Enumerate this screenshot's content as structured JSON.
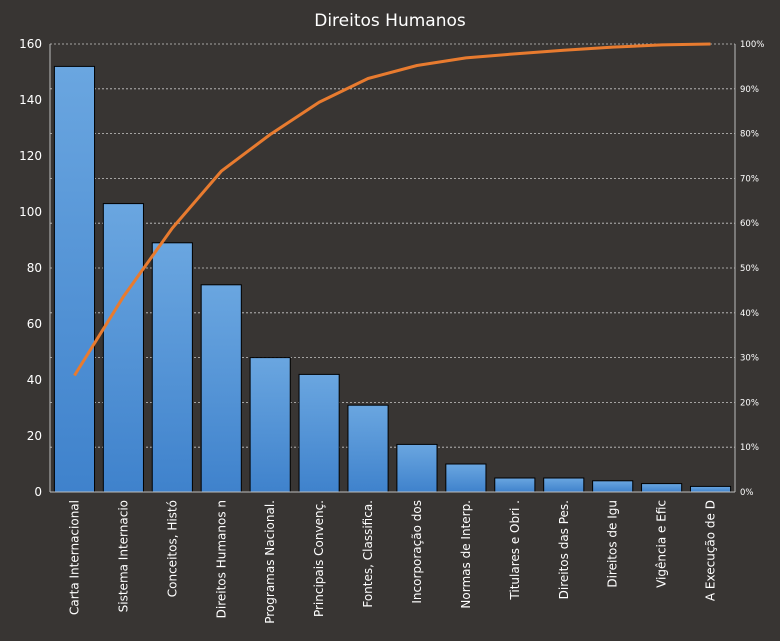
{
  "chart_data": {
    "type": "bar",
    "title": "Direitos Humanos",
    "categories": [
      "Carta Internacional",
      "Sistema Internacio",
      "Conceitos, Histó",
      "Direitos Humanos n",
      "Programas Nacional.",
      "Principais Convenç.",
      "Fontes, Classifica.",
      "Incorporação dos",
      "Normas de Interp.",
      "Titulares e Obri .",
      "Direitos das Pes.",
      "Direitos de Igu",
      "Vigência e Efic",
      "A Execução de D"
    ],
    "series": [
      {
        "type": "bar",
        "values": [
          152,
          103,
          89,
          74,
          48,
          42,
          31,
          17,
          10,
          5,
          5,
          4,
          3,
          2
        ]
      },
      {
        "type": "line",
        "axis": "right",
        "values": [
          26,
          43.6,
          58.9,
          71.6,
          79.8,
          87,
          92.3,
          95.2,
          96.9,
          97.8,
          98.6,
          99.3,
          99.8,
          100
        ]
      }
    ],
    "ylim": [
      0,
      160
    ],
    "yticks": [
      0,
      20,
      40,
      60,
      80,
      100,
      120,
      140,
      160
    ],
    "y2lim": [
      0,
      100
    ],
    "y2ticks": [
      "0%",
      "10%",
      "20%",
      "30%",
      "40%",
      "50%",
      "60%",
      "70%",
      "80%",
      "90%",
      "100%"
    ],
    "grid": true,
    "legend": "none",
    "colors": {
      "background": "#383533",
      "bar_top": "#6aa6e0",
      "bar_bottom": "#3f82cc",
      "line": "#e87b2f",
      "grid": "#c8c8c8"
    }
  }
}
